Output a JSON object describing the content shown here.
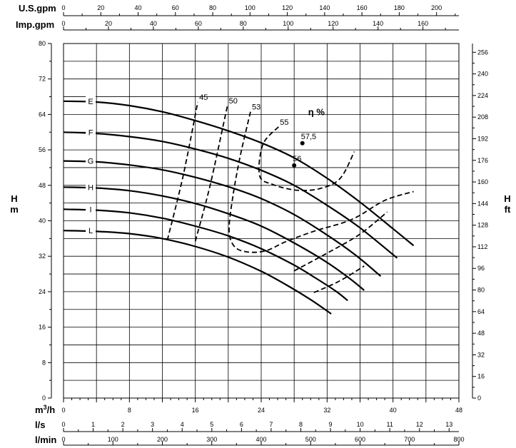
{
  "chart_data": {
    "type": "line",
    "title": "",
    "x_axes": [
      {
        "label": "U.S.gpm",
        "position": "top",
        "ticks": [
          "0",
          "20",
          "40",
          "60",
          "80",
          "100",
          "120",
          "140",
          "160",
          "180",
          "200"
        ],
        "max": 212
      },
      {
        "label": "Imp.gpm",
        "position": "top",
        "ticks": [
          "0",
          "20",
          "40",
          "60",
          "80",
          "100",
          "120",
          "140",
          "160"
        ],
        "max": 176
      },
      {
        "label": "m³/h",
        "label_main": "m",
        "label_sup": "3",
        "label_tail": "/h",
        "position": "bottom",
        "ticks": [
          "0",
          "8",
          "16",
          "24",
          "32",
          "40",
          "48"
        ],
        "max": 48
      },
      {
        "label": "l/s",
        "position": "bottom",
        "ticks": [
          "0",
          "1",
          "2",
          "3",
          "4",
          "5",
          "6",
          "7",
          "8",
          "9",
          "10",
          "11",
          "12",
          "13"
        ],
        "max": 13.33
      },
      {
        "label": "l/min",
        "position": "bottom",
        "ticks": [
          "0",
          "100",
          "200",
          "300",
          "400",
          "500",
          "600",
          "700",
          "800"
        ],
        "max": 800
      }
    ],
    "y_axes": [
      {
        "label": "H m",
        "label_line1": "H",
        "label_line2": "m",
        "position": "left",
        "ticks": [
          "0",
          "8",
          "16",
          "24",
          "32",
          "40",
          "48",
          "56",
          "64",
          "72",
          "80"
        ],
        "max": 80
      },
      {
        "label": "H ft",
        "label_line1": "H",
        "label_line2": "ft",
        "position": "right",
        "ticks": [
          "0",
          "16",
          "32",
          "48",
          "64",
          "80",
          "96",
          "112",
          "128",
          "144",
          "160",
          "176",
          "192",
          "208",
          "224",
          "240",
          "256"
        ],
        "max": 262.5
      }
    ],
    "x": "m3/h",
    "xlim": [
      0,
      48
    ],
    "ylim": [
      0,
      80
    ],
    "grid": true,
    "series": [
      {
        "name": "E",
        "style": "solid",
        "points": [
          [
            0,
            67
          ],
          [
            4,
            66.8
          ],
          [
            8,
            66
          ],
          [
            12,
            64.6
          ],
          [
            16,
            62.6
          ],
          [
            20,
            60.3
          ],
          [
            24,
            57.6
          ],
          [
            28,
            54.2
          ],
          [
            32,
            49.6
          ],
          [
            36,
            44.2
          ],
          [
            40,
            38.2
          ],
          [
            42.5,
            34.4
          ]
        ]
      },
      {
        "name": "F",
        "style": "solid",
        "points": [
          [
            0,
            60
          ],
          [
            4,
            59.7
          ],
          [
            8,
            59
          ],
          [
            12,
            57.9
          ],
          [
            16,
            56.2
          ],
          [
            20,
            54.1
          ],
          [
            24,
            51.4
          ],
          [
            28,
            48
          ],
          [
            32,
            43.5
          ],
          [
            36,
            38.4
          ],
          [
            40.5,
            31.6
          ]
        ]
      },
      {
        "name": "G",
        "style": "solid",
        "points": [
          [
            0,
            53.5
          ],
          [
            4,
            53.3
          ],
          [
            8,
            52.6
          ],
          [
            12,
            51.5
          ],
          [
            16,
            49.8
          ],
          [
            20,
            47.7
          ],
          [
            24,
            45
          ],
          [
            28,
            41.4
          ],
          [
            32,
            36.8
          ],
          [
            35.5,
            32.2
          ],
          [
            38.5,
            27.5
          ]
        ]
      },
      {
        "name": "H",
        "style": "solid",
        "points": [
          [
            0,
            47.6
          ],
          [
            4,
            47.4
          ],
          [
            8,
            46.8
          ],
          [
            12,
            45.6
          ],
          [
            16,
            43.9
          ],
          [
            20,
            41.6
          ],
          [
            24,
            38.8
          ],
          [
            28,
            35
          ],
          [
            32,
            30.6
          ],
          [
            35,
            26.6
          ],
          [
            36.5,
            24.3
          ]
        ]
      },
      {
        "name": "I",
        "style": "solid",
        "points": [
          [
            0,
            42.6
          ],
          [
            4,
            42.4
          ],
          [
            8,
            41.8
          ],
          [
            12,
            40.6
          ],
          [
            16,
            38.8
          ],
          [
            20,
            36.6
          ],
          [
            24,
            33.7
          ],
          [
            28,
            30
          ],
          [
            30.5,
            27.2
          ],
          [
            33,
            24.2
          ],
          [
            34.5,
            22
          ]
        ]
      },
      {
        "name": "L",
        "style": "solid",
        "points": [
          [
            0,
            37.8
          ],
          [
            4,
            37.6
          ],
          [
            8,
            37.1
          ],
          [
            12,
            36
          ],
          [
            16,
            34.2
          ],
          [
            20,
            31.8
          ],
          [
            24,
            28.6
          ],
          [
            27,
            25.6
          ],
          [
            30,
            22.2
          ],
          [
            32.5,
            19
          ]
        ]
      }
    ],
    "efficiency_label": "η %",
    "efficiency_curves": [
      {
        "name": "45",
        "points": [
          [
            12.6,
            35.6
          ],
          [
            14.5,
            50
          ],
          [
            16.3,
            66.8
          ]
        ]
      },
      {
        "name": "50",
        "points": [
          [
            16,
            35.4
          ],
          [
            17.8,
            48
          ],
          [
            19.9,
            66
          ]
        ]
      },
      {
        "name": "53",
        "points": [
          [
            22.7,
            64.6
          ],
          [
            21.5,
            55
          ],
          [
            20.6,
            46
          ],
          [
            20.1,
            38
          ],
          [
            20.7,
            34.3
          ],
          [
            22.2,
            33
          ],
          [
            24.5,
            33.2
          ],
          [
            27,
            35.3
          ],
          [
            30.5,
            37.7
          ],
          [
            35,
            40.3
          ],
          [
            39,
            44.6
          ],
          [
            42.5,
            46.6
          ]
        ]
      },
      {
        "name": "55",
        "points": [
          [
            26.1,
            61.2
          ],
          [
            24.2,
            57.2
          ],
          [
            23.8,
            50.2
          ],
          [
            25.4,
            48.2
          ],
          [
            28.3,
            46.9
          ],
          [
            31.2,
            47.3
          ],
          [
            33.6,
            49.6
          ],
          [
            35.3,
            55.6
          ]
        ]
      },
      {
        "name": "55 (lower branch)",
        "points": [
          [
            28,
            28.7
          ],
          [
            32,
            32.7
          ],
          [
            36,
            37
          ],
          [
            39.3,
            42
          ]
        ]
      },
      {
        "name": "53 (lower branch)",
        "points": [
          [
            30.4,
            23.8
          ],
          [
            33.5,
            26.4
          ],
          [
            36.5,
            29.8
          ]
        ]
      }
    ],
    "efficiency_points": [
      {
        "label": "57,5",
        "x": 29,
        "y": 57.5
      },
      {
        "label": "56",
        "x": 28,
        "y": 52.5
      }
    ]
  }
}
